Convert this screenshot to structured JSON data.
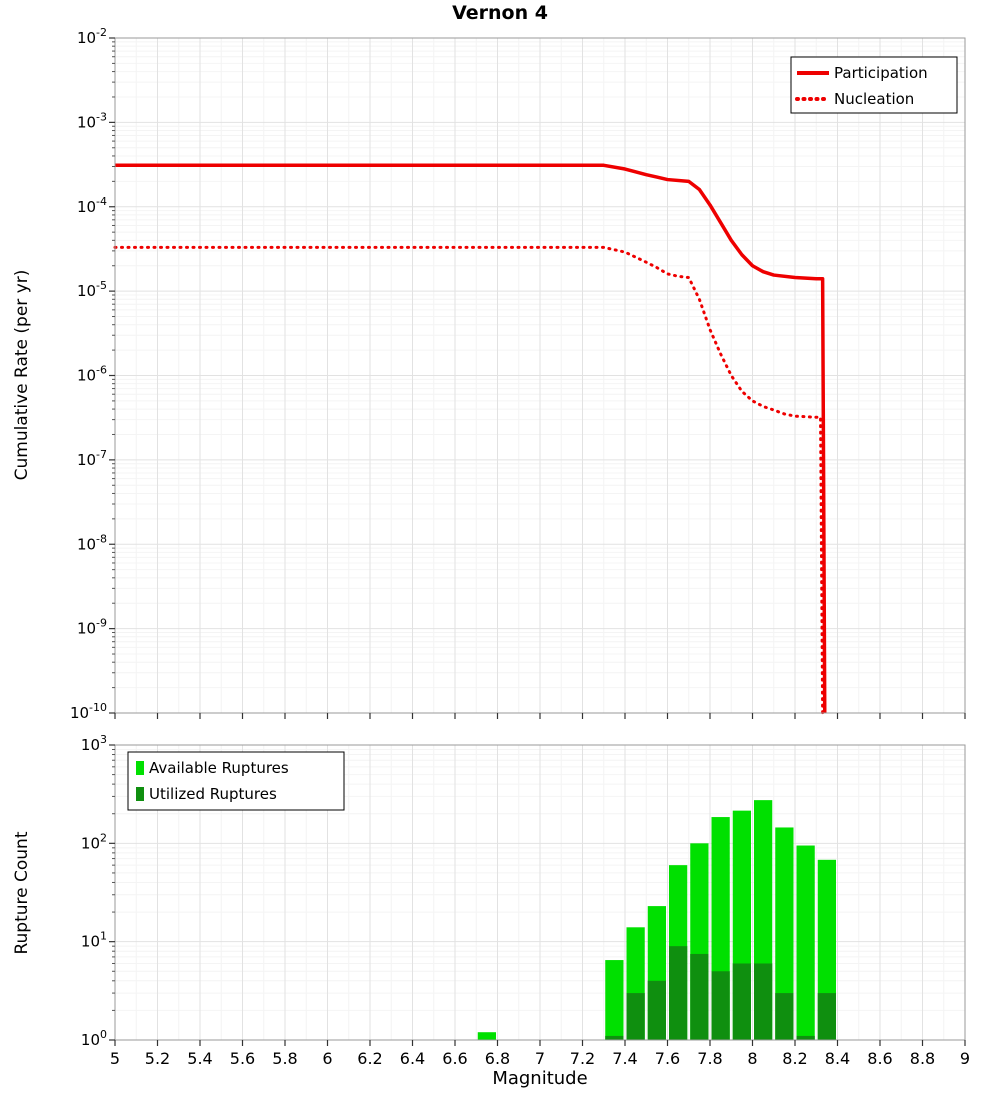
{
  "figure": {
    "title": "Vernon 4",
    "x_axis_label": "Magnitude",
    "top_y_axis_label": "Cumulative Rate (per yr)",
    "bottom_y_axis_label": "Rupture Count"
  },
  "chart_data": [
    {
      "type": "line",
      "title": "Vernon 4",
      "xlabel": "Magnitude",
      "ylabel": "Cumulative Rate (per yr)",
      "xlim": [
        5,
        9
      ],
      "x_tick_step": 0.2,
      "x_tick_labels": [
        "5",
        "5.2",
        "5.4",
        "5.6",
        "5.8",
        "6",
        "6.2",
        "6.4",
        "6.6",
        "6.8",
        "7",
        "7.2",
        "7.4",
        "7.6",
        "7.8",
        "8",
        "8.2",
        "8.4",
        "8.6",
        "8.8",
        "9"
      ],
      "ylog": true,
      "ylim_exp": [
        -10,
        -2
      ],
      "y_tick_exponents": [
        -2,
        -3,
        -4,
        -5,
        -6,
        -7,
        -8,
        -9,
        -10
      ],
      "grid": true,
      "legend_position": "top-right",
      "series": [
        {
          "name": "Participation",
          "color": "#ee0000",
          "style": "solid",
          "width": 3.5,
          "points": [
            [
              5,
              0.00031
            ],
            [
              7.3,
              0.00031
            ],
            [
              7.4,
              0.00028
            ],
            [
              7.5,
              0.00024
            ],
            [
              7.55,
              0.000225
            ],
            [
              7.6,
              0.00021
            ],
            [
              7.7,
              0.0002
            ],
            [
              7.75,
              0.00016
            ],
            [
              7.8,
              0.000105
            ],
            [
              7.85,
              6.5e-05
            ],
            [
              7.9,
              4e-05
            ],
            [
              7.95,
              2.7e-05
            ],
            [
              8.0,
              2e-05
            ],
            [
              8.05,
              1.7e-05
            ],
            [
              8.1,
              1.55e-05
            ],
            [
              8.2,
              1.45e-05
            ],
            [
              8.3,
              1.4e-05
            ],
            [
              8.33,
              1.4e-05
            ],
            [
              8.34,
              1e-10
            ]
          ]
        },
        {
          "name": "Nucleation",
          "color": "#ee0000",
          "style": "dotted",
          "width": 3,
          "points": [
            [
              5,
              3.3e-05
            ],
            [
              7.3,
              3.3e-05
            ],
            [
              7.4,
              2.9e-05
            ],
            [
              7.5,
              2.2e-05
            ],
            [
              7.55,
              1.9e-05
            ],
            [
              7.6,
              1.6e-05
            ],
            [
              7.65,
              1.5e-05
            ],
            [
              7.7,
              1.45e-05
            ],
            [
              7.75,
              8e-06
            ],
            [
              7.8,
              3.5e-06
            ],
            [
              7.85,
              1.8e-06
            ],
            [
              7.9,
              1e-06
            ],
            [
              7.95,
              6.5e-07
            ],
            [
              8.0,
              5e-07
            ],
            [
              8.05,
              4.3e-07
            ],
            [
              8.1,
              3.9e-07
            ],
            [
              8.15,
              3.5e-07
            ],
            [
              8.2,
              3.3e-07
            ],
            [
              8.3,
              3.2e-07
            ],
            [
              8.32,
              3.2e-07
            ],
            [
              8.33,
              1e-10
            ]
          ]
        }
      ]
    },
    {
      "type": "bar",
      "title": "",
      "xlabel": "Magnitude",
      "ylabel": "Rupture Count",
      "xlim": [
        5,
        9
      ],
      "x_tick_step": 0.2,
      "x_tick_labels": [
        "5",
        "5.2",
        "5.4",
        "5.6",
        "5.8",
        "6",
        "6.2",
        "6.4",
        "6.6",
        "6.8",
        "7",
        "7.2",
        "7.4",
        "7.6",
        "7.8",
        "8",
        "8.2",
        "8.4",
        "8.6",
        "8.8",
        "9"
      ],
      "ylog": true,
      "ylim_exp": [
        0,
        3
      ],
      "y_tick_exponents": [
        3,
        2,
        1,
        0
      ],
      "bar_width": 0.1,
      "grid": true,
      "legend_position": "top-left",
      "series": [
        {
          "name": "Available Ruptures",
          "color": "#00e000",
          "bars": [
            [
              6.75,
              1.2
            ],
            [
              7.35,
              6.5
            ],
            [
              7.45,
              14
            ],
            [
              7.55,
              23
            ],
            [
              7.65,
              60
            ],
            [
              7.75,
              100
            ],
            [
              7.85,
              185
            ],
            [
              7.95,
              215
            ],
            [
              8.05,
              275
            ],
            [
              8.15,
              145
            ],
            [
              8.25,
              95
            ],
            [
              8.35,
              68
            ]
          ]
        },
        {
          "name": "Utilized Ruptures",
          "color": "#0f8f0f",
          "bars": [
            [
              7.35,
              1.1
            ],
            [
              7.45,
              3
            ],
            [
              7.55,
              4
            ],
            [
              7.65,
              9
            ],
            [
              7.75,
              7.5
            ],
            [
              7.85,
              5
            ],
            [
              7.95,
              6
            ],
            [
              8.05,
              6
            ],
            [
              8.15,
              3
            ],
            [
              8.25,
              1.1
            ],
            [
              8.35,
              3
            ]
          ]
        }
      ]
    }
  ]
}
